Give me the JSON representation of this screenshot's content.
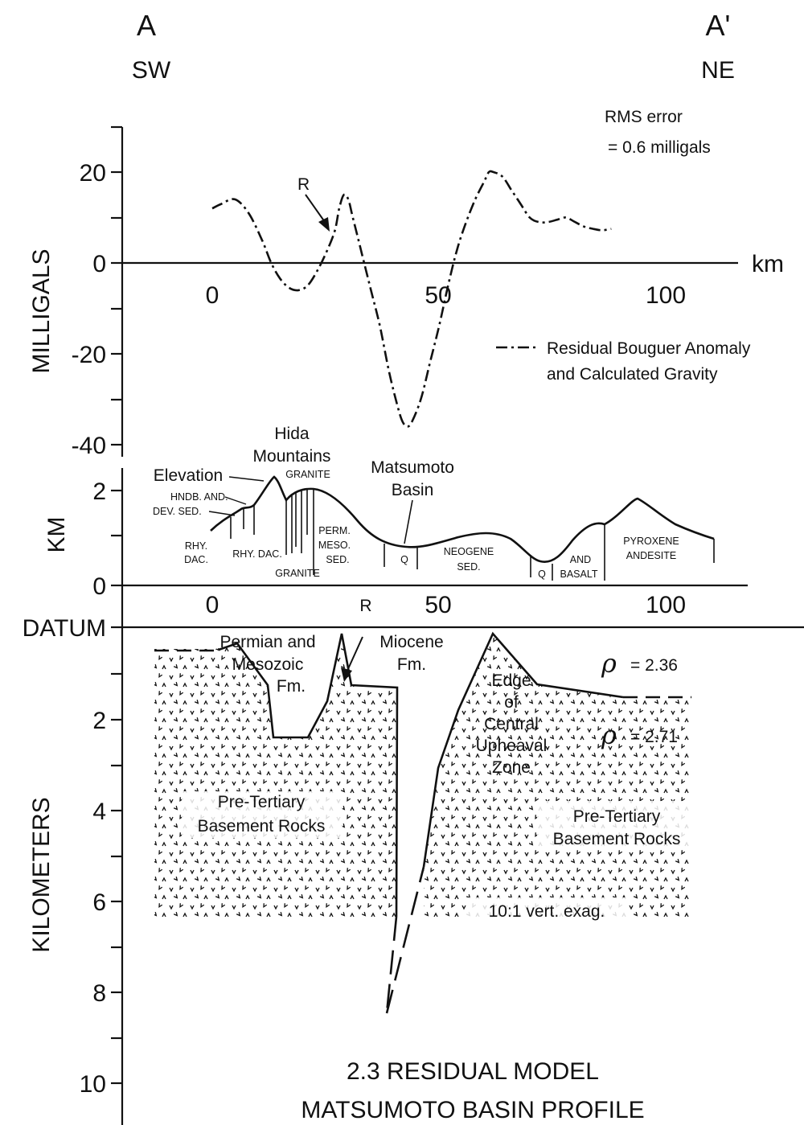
{
  "section": {
    "left_letter": "A",
    "right_letter": "A'",
    "left_dir": "SW",
    "right_dir": "NE"
  },
  "gravity_panel": {
    "ylabel": "MILLIGALS",
    "xunit": "km",
    "y_ticks": [
      "20",
      "0",
      "-20",
      "-40"
    ],
    "x_ticks": [
      "0",
      "50",
      "100"
    ],
    "rms_line1": "RMS error",
    "rms_line2": "= 0.6 milligals",
    "marker": "R",
    "legend_line1": "Residual Bouguer Anomaly",
    "legend_line2": "and Calculated Gravity"
  },
  "chart_data": {
    "type": "line",
    "xlabel": "km",
    "ylabel": "MILLIGALS",
    "xlim": [
      0,
      110
    ],
    "ylim": [
      -40,
      30
    ],
    "series": [
      {
        "x": [
          0,
          2,
          5,
          8,
          11,
          13,
          15,
          17,
          19,
          21,
          23,
          25,
          27,
          28,
          29,
          30,
          31,
          33,
          35,
          37,
          39,
          41,
          42,
          43,
          44,
          46,
          48,
          50,
          52,
          54,
          56,
          58,
          60,
          61,
          62,
          64,
          66,
          68,
          70,
          72,
          74,
          76,
          78,
          80,
          82,
          84,
          86,
          88
        ],
        "y": [
          12,
          13,
          14,
          11,
          5,
          0,
          -3.5,
          -5.5,
          -6,
          -5,
          -2,
          2,
          7,
          12,
          15,
          14,
          10,
          2,
          -6,
          -14,
          -24,
          -32,
          -35,
          -36,
          -35,
          -30,
          -22,
          -14,
          -5,
          3,
          9,
          14,
          18,
          20,
          20,
          19,
          16,
          13,
          10,
          9,
          9,
          9.5,
          10,
          9,
          8,
          7.5,
          7.2,
          7.5
        ]
      }
    ]
  },
  "elevation_panel": {
    "ylabel": "KM",
    "y_ticks": [
      "2",
      "0"
    ],
    "x_ticks": [
      "0",
      "50",
      "100"
    ],
    "datum": "DATUM",
    "marker": "R",
    "labels": {
      "hida1": "Hida",
      "hida2": "Mountains",
      "elevation": "Elevation",
      "granite_top": "GRANITE",
      "matsu1": "Matsumoto",
      "matsu2": "Basin",
      "hndb": "HNDB. AND.",
      "devsed": "DEV. SED.",
      "rhy1": "RHY.",
      "dac1": "DAC.",
      "rhydac": "RHY. DAC.",
      "granite_bot": "GRANITE",
      "perm1": "PERM.",
      "perm2": "MESO.",
      "perm3": "SED.",
      "q1": "Q",
      "neo1": "NEOGENE",
      "neo2": "SED.",
      "q2": "Q",
      "and1": "AND",
      "basalt": "BASALT",
      "pyr1": "PYROXENE",
      "pyr2": "ANDESITE"
    }
  },
  "model_panel": {
    "ylabel": "KILOMETERS",
    "y_ticks": [
      "2",
      "4",
      "6",
      "8",
      "10"
    ],
    "labels": {
      "perm1": "Permian and",
      "perm2": "Mesozoic",
      "perm3": "Fm.",
      "mio1": "Miocene",
      "mio2": "Fm.",
      "edge1": "Edge",
      "edge2": "of",
      "edge3": "Central",
      "edge4": "Upheaval",
      "edge5": "Zone",
      "rho1": "= 2.36",
      "rho2": "= 2.71",
      "rho_sym": "ρ",
      "pre_l1": "Pre-Tertiary",
      "pre_l2": "Basement Rocks",
      "pre_r1": "Pre-Tertiary",
      "pre_r2": "Basement Rocks",
      "exag": "10:1 vert. exag."
    }
  },
  "title": {
    "line1": "2.3 RESIDUAL MODEL",
    "line2": "MATSUMOTO BASIN PROFILE"
  }
}
